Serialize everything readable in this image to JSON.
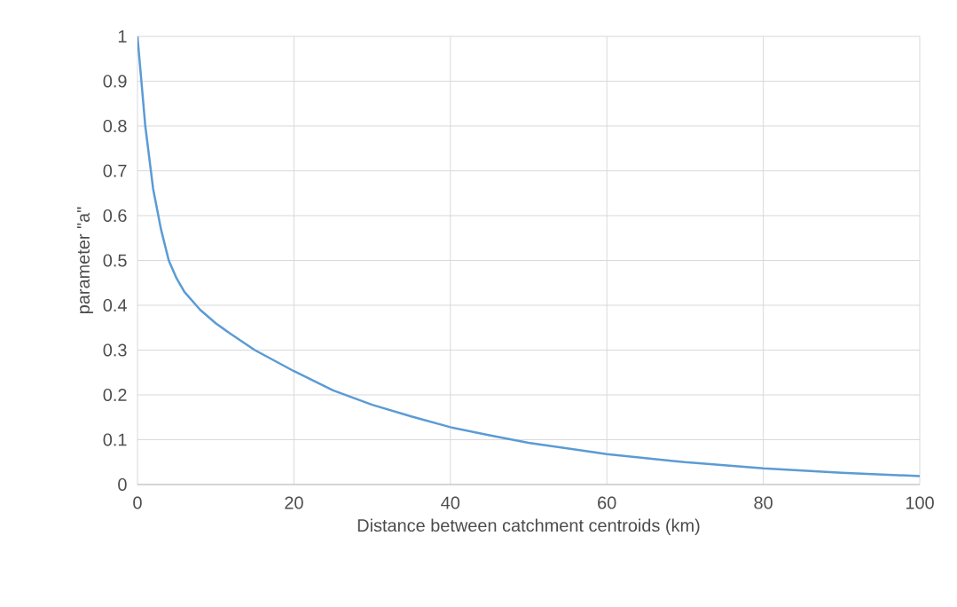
{
  "chart_data": {
    "type": "line",
    "xlabel": "Distance between  catchment centroids (km)",
    "ylabel": "parameter \"a\"",
    "series": [
      {
        "color": "#5b9bd5",
        "x": [
          0,
          1,
          2,
          3,
          4,
          5,
          6,
          8,
          10,
          12,
          15,
          20,
          25,
          30,
          35,
          40,
          45,
          50,
          60,
          70,
          80,
          90,
          100
        ],
        "values": [
          1.0,
          0.8,
          0.66,
          0.57,
          0.5,
          0.46,
          0.43,
          0.39,
          0.36,
          0.335,
          0.3,
          0.253,
          0.21,
          0.178,
          0.152,
          0.128,
          0.11,
          0.093,
          0.068,
          0.05,
          0.036,
          0.026,
          0.019
        ]
      }
    ],
    "xlim": [
      0,
      100
    ],
    "ylim": [
      0,
      1
    ],
    "xticks": [
      0,
      20,
      40,
      60,
      80,
      100
    ],
    "yticks": [
      0,
      0.1,
      0.2,
      0.3,
      0.4,
      0.5,
      0.6,
      0.7,
      0.8,
      0.9,
      1
    ],
    "grid": true,
    "marker": "none",
    "line_style": "solid"
  }
}
